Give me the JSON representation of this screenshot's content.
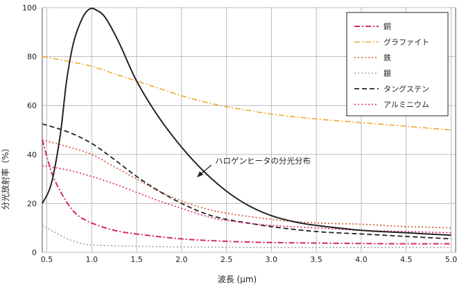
{
  "chart_data": {
    "type": "line",
    "xlabel": "波長 (μm)",
    "ylabel": "分光放射率（%）",
    "xlim": [
      0.5,
      5.0
    ],
    "ylim": [
      0,
      100
    ],
    "xticks": [
      "0.5",
      "1.0",
      "1.5",
      "2.0",
      "2.5",
      "3.0",
      "3.5",
      "4.0",
      "4.5",
      "5.0"
    ],
    "yticks": [
      "0",
      "20",
      "40",
      "60",
      "80",
      "100"
    ],
    "grid": true,
    "legend_position": "top-right",
    "annotation": "ハロゲンヒータの分光分布",
    "series": [
      {
        "name": "銅",
        "color": "#d6246e",
        "dash": "dashdot",
        "width": 2,
        "points": [
          [
            0.45,
            46
          ],
          [
            0.55,
            33
          ],
          [
            0.65,
            25
          ],
          [
            0.75,
            19
          ],
          [
            0.85,
            15
          ],
          [
            1.0,
            12
          ],
          [
            1.25,
            9
          ],
          [
            1.5,
            7.5
          ],
          [
            2.0,
            5.5
          ],
          [
            2.5,
            4.5
          ],
          [
            3.0,
            4
          ],
          [
            3.5,
            3.8
          ],
          [
            4.0,
            3.6
          ],
          [
            4.5,
            3.5
          ],
          [
            5.0,
            3.5
          ]
        ]
      },
      {
        "name": "グラファイト",
        "color": "#f0a833",
        "dash": "dashdot",
        "width": 1.6,
        "points": [
          [
            0.45,
            80
          ],
          [
            0.75,
            78
          ],
          [
            1.0,
            76
          ],
          [
            1.25,
            73
          ],
          [
            1.5,
            70
          ],
          [
            1.75,
            67
          ],
          [
            2.0,
            64
          ],
          [
            2.25,
            61.5
          ],
          [
            2.5,
            59.5
          ],
          [
            2.75,
            58
          ],
          [
            3.0,
            56.5
          ],
          [
            3.5,
            54.5
          ],
          [
            4.0,
            53
          ],
          [
            4.5,
            51.5
          ],
          [
            5.0,
            50
          ]
        ]
      },
      {
        "name": "鉄",
        "color": "#d0502a",
        "dash": "dot",
        "width": 1.6,
        "points": [
          [
            0.45,
            46
          ],
          [
            0.75,
            43
          ],
          [
            1.0,
            40
          ],
          [
            1.25,
            35
          ],
          [
            1.5,
            30
          ],
          [
            1.75,
            25
          ],
          [
            2.0,
            21
          ],
          [
            2.25,
            18
          ],
          [
            2.5,
            16
          ],
          [
            3.0,
            13.5
          ],
          [
            3.5,
            12
          ],
          [
            4.0,
            11.5
          ],
          [
            4.5,
            10.5
          ],
          [
            5.0,
            10
          ]
        ]
      },
      {
        "name": "銀",
        "color": "#a0a0a0",
        "dash": "dot",
        "width": 1.6,
        "points": [
          [
            0.45,
            11
          ],
          [
            0.55,
            9
          ],
          [
            0.7,
            6
          ],
          [
            0.85,
            4
          ],
          [
            1.0,
            3
          ],
          [
            1.5,
            2.5
          ],
          [
            2.0,
            2.2
          ],
          [
            3.0,
            2
          ],
          [
            4.0,
            2
          ],
          [
            5.0,
            2
          ]
        ]
      },
      {
        "name": "タングステン",
        "color": "#222222",
        "dash": "dash",
        "width": 1.8,
        "points": [
          [
            0.45,
            52.5
          ],
          [
            0.75,
            49
          ],
          [
            1.0,
            44.5
          ],
          [
            1.25,
            38
          ],
          [
            1.5,
            31
          ],
          [
            1.75,
            25
          ],
          [
            2.0,
            20
          ],
          [
            2.25,
            16
          ],
          [
            2.5,
            13.5
          ],
          [
            3.0,
            10.5
          ],
          [
            3.5,
            8.5
          ],
          [
            4.0,
            7.5
          ],
          [
            4.5,
            6.5
          ],
          [
            5.0,
            5.5
          ]
        ]
      },
      {
        "name": "アルミニウム",
        "color": "#e0197b",
        "dash": "dot",
        "width": 1.6,
        "points": [
          [
            0.45,
            35.5
          ],
          [
            0.75,
            33.5
          ],
          [
            1.0,
            31
          ],
          [
            1.25,
            28
          ],
          [
            1.5,
            24.5
          ],
          [
            1.75,
            21
          ],
          [
            2.0,
            18
          ],
          [
            2.25,
            15
          ],
          [
            2.5,
            13
          ],
          [
            3.0,
            11
          ],
          [
            3.5,
            10
          ],
          [
            4.0,
            9
          ],
          [
            4.5,
            8.5
          ],
          [
            5.0,
            8
          ]
        ]
      },
      {
        "name": "",
        "color": "#222222",
        "dash": "solid",
        "width": 2,
        "points": [
          [
            0.45,
            20
          ],
          [
            0.55,
            28
          ],
          [
            0.65,
            48
          ],
          [
            0.72,
            70
          ],
          [
            0.8,
            86
          ],
          [
            0.9,
            96
          ],
          [
            0.98,
            99.5
          ],
          [
            1.05,
            99
          ],
          [
            1.15,
            96
          ],
          [
            1.3,
            86
          ],
          [
            1.5,
            70
          ],
          [
            1.75,
            55
          ],
          [
            2.0,
            43
          ],
          [
            2.25,
            33
          ],
          [
            2.5,
            25
          ],
          [
            2.75,
            19
          ],
          [
            3.0,
            15
          ],
          [
            3.25,
            12.5
          ],
          [
            3.5,
            11
          ],
          [
            4.0,
            9
          ],
          [
            4.5,
            8
          ],
          [
            5.0,
            7
          ]
        ]
      }
    ]
  }
}
